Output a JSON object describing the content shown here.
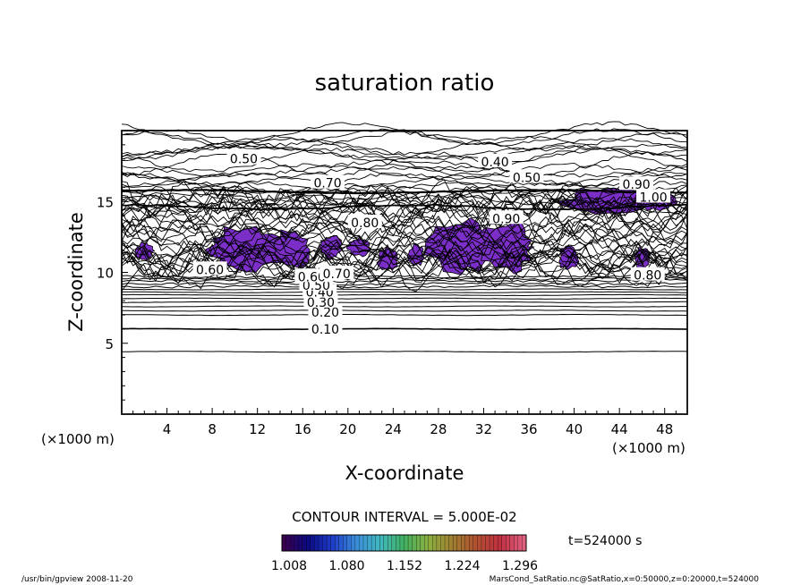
{
  "chart_data": {
    "type": "contour",
    "title": "saturation ratio",
    "xlabel": "X-coordinate",
    "ylabel": "Z-coordinate",
    "x_unit": "(×1000 m)",
    "y_unit": "(×1000 m)",
    "xlim": [
      0,
      50
    ],
    "ylim": [
      0,
      20
    ],
    "x_ticks": [
      "4",
      "8",
      "12",
      "16",
      "20",
      "24",
      "28",
      "32",
      "36",
      "40",
      "44",
      "48"
    ],
    "y_ticks": [
      "5",
      "10",
      "15"
    ],
    "contour_interval_label": "CONTOUR INTERVAL = 5.000E-02",
    "time_label": "t=524000 s",
    "colorbar": {
      "tick_labels": [
        "1.008",
        "1.080",
        "1.152",
        "1.224",
        "1.296"
      ],
      "colors": [
        "#3a0050",
        "#0a0a80",
        "#1e3cc8",
        "#3a8cd8",
        "#40b8c0",
        "#40b060",
        "#8cb040",
        "#a08030",
        "#b05030",
        "#c03040",
        "#e06080"
      ]
    },
    "fill_color": "#7b2ec8",
    "contour_labels": [
      {
        "text": "0.10",
        "x": 18.0,
        "z": 6.0
      },
      {
        "text": "0.20",
        "x": 18.0,
        "z": 7.2
      },
      {
        "text": "0.30",
        "x": 17.6,
        "z": 7.9
      },
      {
        "text": "0.40",
        "x": 17.5,
        "z": 8.6
      },
      {
        "text": "0.50",
        "x": 17.2,
        "z": 9.1
      },
      {
        "text": "0.60",
        "x": 16.8,
        "z": 9.7
      },
      {
        "text": "0.70",
        "x": 19.0,
        "z": 9.9
      },
      {
        "text": "0.50",
        "x": 10.8,
        "z": 18.0
      },
      {
        "text": "0.70",
        "x": 18.2,
        "z": 16.3
      },
      {
        "text": "0.40",
        "x": 33.0,
        "z": 17.8
      },
      {
        "text": "0.50",
        "x": 35.8,
        "z": 16.7
      },
      {
        "text": "0.90",
        "x": 34.0,
        "z": 13.8
      },
      {
        "text": "0.80",
        "x": 21.5,
        "z": 13.5
      },
      {
        "text": "0.60",
        "x": 7.8,
        "z": 10.2
      },
      {
        "text": "0.80",
        "x": 46.5,
        "z": 9.8
      },
      {
        "text": "1.00",
        "x": 47.0,
        "z": 15.3
      },
      {
        "text": "0.90",
        "x": 45.5,
        "z": 16.2
      }
    ],
    "filled_regions_note": "regions where saturation ratio > 1"
  },
  "footer": {
    "left": "/usr/bin/gpview   2008-11-20",
    "right": "MarsCond_SatRatio.nc@SatRatio,x=0:50000,z=0:20000,t=524000"
  }
}
